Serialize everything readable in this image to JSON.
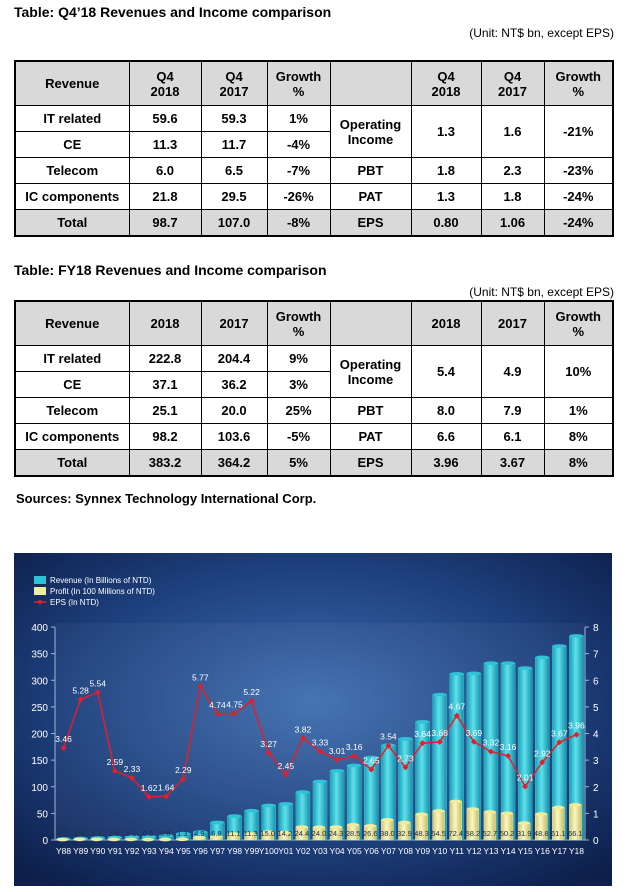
{
  "tables": [
    {
      "title": "Table: Q4’18 Revenues and Income comparison",
      "unit": "(Unit: NT$ bn, except EPS)",
      "header": [
        "Revenue",
        "Q4\n2018",
        "Q4\n2017",
        "Growth\n%",
        "Q4\n2018",
        "Q4\n2017",
        "Growth\n%"
      ],
      "revenue_rows": [
        [
          "IT related",
          "59.6",
          "59.3",
          "1%"
        ],
        [
          "CE",
          "11.3",
          "11.7",
          "-4%"
        ],
        [
          "Telecom",
          "6.0",
          "6.5",
          "-7%"
        ],
        [
          "IC components",
          "21.8",
          "29.5",
          "-26%"
        ],
        [
          "Total",
          "98.7",
          "107.0",
          "-8%"
        ]
      ],
      "income_rows": [
        [
          "Operating\nIncome",
          "1.3",
          "1.6",
          "-21%"
        ],
        [
          "PBT",
          "1.8",
          "2.3",
          "-23%"
        ],
        [
          "PAT",
          "1.3",
          "1.8",
          "-24%"
        ],
        [
          "EPS",
          "0.80",
          "1.06",
          "-24%"
        ]
      ]
    },
    {
      "title": "Table: FY18 Revenues and Income comparison",
      "unit": "(Unit: NT$ bn, except EPS)",
      "header": [
        "Revenue",
        "2018",
        "2017",
        "Growth\n%",
        "2018",
        "2017",
        "Growth\n%"
      ],
      "revenue_rows": [
        [
          "IT related",
          "222.8",
          "204.4",
          "9%"
        ],
        [
          "CE",
          "37.1",
          "36.2",
          "3%"
        ],
        [
          "Telecom",
          "25.1",
          "20.0",
          "25%"
        ],
        [
          "IC components",
          "98.2",
          "103.6",
          "-5%"
        ],
        [
          "Total",
          "383.2",
          "364.2",
          "5%"
        ]
      ],
      "income_rows": [
        [
          "Operating\nIncome",
          "5.4",
          "4.9",
          "10%"
        ],
        [
          "PBT",
          "8.0",
          "7.9",
          "1%"
        ],
        [
          "PAT",
          "6.6",
          "6.1",
          "8%"
        ],
        [
          "EPS",
          "3.96",
          "3.67",
          "8%"
        ]
      ]
    }
  ],
  "sources": "Sources: Synnex Technology International Corp.",
  "chart_data": {
    "type": "bar",
    "categories": [
      "Y88",
      "Y89",
      "Y90",
      "Y91",
      "Y92",
      "Y93",
      "Y94",
      "Y95",
      "Y96",
      "Y97",
      "Y98",
      "Y99",
      "Y100",
      "Y01",
      "Y02",
      "Y03",
      "Y04",
      "Y05",
      "Y06",
      "Y07",
      "Y08",
      "Y09",
      "Y10",
      "Y11",
      "Y12",
      "Y13",
      "Y14",
      "Y15",
      "Y16",
      "Y17",
      "Y18"
    ],
    "series": [
      {
        "name": "Revenue (In Billions of NTD)",
        "color": "#2ec3d6",
        "type": "bar",
        "values": [
          2,
          3,
          4,
          5,
          6,
          6,
          8,
          12,
          15,
          33,
          45,
          55,
          65,
          68,
          90,
          110,
          130,
          140,
          155,
          178,
          190,
          222,
          273,
          312,
          313,
          332,
          332,
          323,
          343,
          364.2,
          383.2
        ]
      },
      {
        "name": "Profit (In 100 Millions of NTD)",
        "color": "#f1eb9c",
        "type": "bar",
        "values": [
          0.7,
          1.1,
          1.1,
          1.0,
          1.1,
          0.8,
          0.8,
          1.3,
          4.9,
          6.8,
          11.1,
          11.3,
          15.0,
          14.2,
          24.4,
          24.0,
          24.3,
          28.5,
          26.6,
          38.0,
          32.9,
          48.3,
          54.5,
          72.4,
          58.2,
          52.7,
          50.2,
          31.9,
          48.8,
          61.1,
          66.1
        ],
        "value_labels": [
          "0.7",
          "1.1",
          "1.1",
          "1.0",
          "1.1",
          "0.8",
          "0.8",
          "1.3",
          "4.9",
          "6.8",
          "11.1",
          "11.3",
          "15.0",
          "14.2",
          "24.4",
          "24.0",
          "24.3",
          "28.5",
          "26.6",
          "38.0",
          "32.9",
          "48.3",
          "54.5",
          "72.4",
          "58.2",
          "52.7",
          "50.2",
          "31.9",
          "48.8",
          "61.1",
          "66.1"
        ]
      },
      {
        "name": "EPS (In NTD)",
        "color": "#e0202a",
        "type": "line",
        "axis": "y2",
        "values": [
          3.46,
          5.28,
          5.54,
          2.59,
          2.33,
          1.62,
          1.64,
          2.29,
          5.77,
          4.74,
          4.75,
          5.22,
          3.27,
          2.45,
          3.82,
          3.33,
          3.01,
          3.16,
          2.65,
          3.54,
          2.73,
          3.64,
          3.68,
          4.67,
          3.69,
          3.32,
          3.16,
          2.01,
          2.92,
          3.67,
          3.96
        ]
      }
    ],
    "ylim": [
      0,
      400
    ],
    "yticks": [
      0,
      50,
      100,
      150,
      200,
      250,
      300,
      350,
      400
    ],
    "y2lim": [
      0,
      8
    ],
    "y2ticks": [
      0,
      1,
      2,
      3,
      4,
      5,
      6,
      7,
      8
    ],
    "legend": "top-left",
    "grid": false
  }
}
